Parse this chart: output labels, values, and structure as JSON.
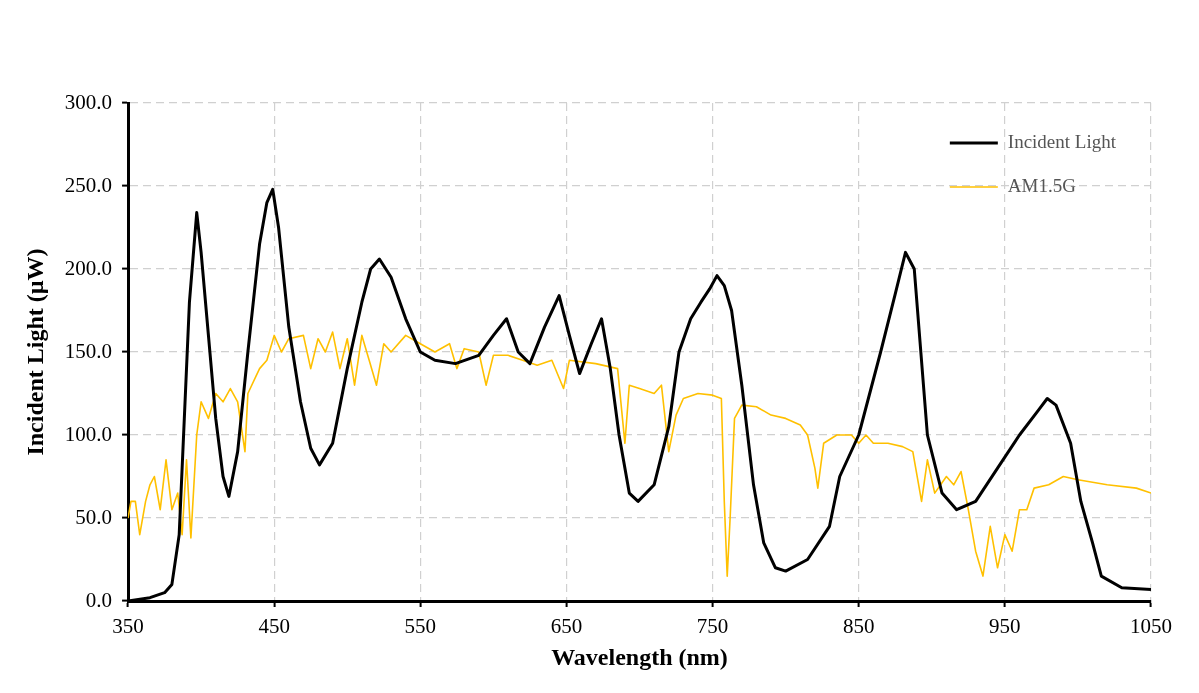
{
  "chart_data": {
    "type": "line",
    "xlabel": "Wavelength (nm)",
    "ylabel": "Incident Light (µW)",
    "xlim": [
      350,
      1050
    ],
    "xticks": [
      350,
      450,
      550,
      650,
      750,
      850,
      950,
      1050
    ],
    "ylim": [
      0,
      300
    ],
    "yticks": [
      {
        "value": 0,
        "label": "0.0"
      },
      {
        "value": 50,
        "label": "50.0"
      },
      {
        "value": 100,
        "label": "100.0"
      },
      {
        "value": 150,
        "label": "150.0"
      },
      {
        "value": 200,
        "label": "200.0"
      },
      {
        "value": 250,
        "label": "250.0"
      },
      {
        "value": 300,
        "label": "300.0"
      }
    ],
    "grid": true,
    "legend": "top right",
    "marker": "none",
    "line_style": "solid",
    "series": [
      {
        "name": "Incident Light",
        "color": "#000000",
        "x": [
          350,
          365,
          375,
          380,
          385,
          388,
          392,
          397,
          400,
          405,
          410,
          415,
          419,
          425,
          432,
          440,
          445,
          449,
          453,
          460,
          468,
          475,
          481,
          490,
          500,
          510,
          516,
          522,
          530,
          540,
          550,
          560,
          574,
          590,
          600,
          609,
          617,
          625,
          635,
          645,
          652,
          659,
          667,
          674,
          680,
          686,
          693,
          699,
          710,
          720,
          727,
          735,
          742,
          748,
          753,
          758,
          763,
          770,
          778,
          785,
          793,
          800,
          815,
          830,
          837,
          850,
          865,
          875,
          882,
          888,
          897,
          907,
          917,
          930,
          945,
          960,
          973,
          979,
          985,
          995,
          1002,
          1010,
          1016,
          1030,
          1050
        ],
        "values": [
          0,
          2,
          5,
          10,
          40,
          100,
          180,
          234,
          210,
          160,
          110,
          75,
          63,
          90,
          150,
          215,
          240,
          248,
          225,
          165,
          120,
          92,
          82,
          95,
          140,
          180,
          200,
          206,
          195,
          170,
          150,
          145,
          143,
          148,
          160,
          170,
          150,
          143,
          165,
          184,
          160,
          137,
          155,
          170,
          140,
          100,
          65,
          60,
          70,
          105,
          150,
          170,
          180,
          188,
          196,
          190,
          175,
          130,
          70,
          35,
          20,
          18,
          25,
          45,
          75,
          100,
          150,
          185,
          210,
          200,
          100,
          65,
          55,
          60,
          80,
          100,
          115,
          122,
          118,
          95,
          60,
          35,
          15,
          8,
          7
        ]
      },
      {
        "name": "AM1.5G",
        "color": "#ffc000",
        "x": [
          350,
          352,
          355,
          358,
          362,
          365,
          368,
          372,
          376,
          380,
          384,
          387,
          390,
          393,
          397,
          400,
          405,
          410,
          415,
          420,
          425,
          430,
          432,
          440,
          445,
          450,
          455,
          460,
          470,
          475,
          480,
          485,
          490,
          495,
          500,
          505,
          510,
          515,
          520,
          525,
          530,
          540,
          550,
          560,
          570,
          575,
          580,
          590,
          595,
          600,
          610,
          620,
          630,
          640,
          648,
          652,
          670,
          685,
          690,
          693,
          700,
          710,
          715,
          720,
          725,
          730,
          740,
          750,
          756,
          758,
          760,
          762,
          765,
          770,
          780,
          790,
          800,
          810,
          815,
          820,
          822,
          826,
          835,
          845,
          850,
          855,
          860,
          870,
          880,
          887,
          893,
          897,
          902,
          910,
          915,
          920,
          925,
          930,
          935,
          940,
          945,
          950,
          955,
          960,
          965,
          970,
          980,
          990,
          1000,
          1020,
          1040,
          1050
        ],
        "values": [
          50,
          60,
          60,
          40,
          60,
          70,
          75,
          55,
          85,
          55,
          65,
          40,
          85,
          38,
          100,
          120,
          110,
          125,
          120,
          128,
          120,
          90,
          125,
          140,
          145,
          160,
          150,
          158,
          160,
          140,
          158,
          150,
          162,
          140,
          158,
          130,
          160,
          145,
          130,
          155,
          150,
          160,
          155,
          150,
          155,
          140,
          152,
          150,
          130,
          148,
          148,
          145,
          142,
          145,
          128,
          145,
          143,
          140,
          95,
          130,
          128,
          125,
          130,
          90,
          112,
          122,
          125,
          124,
          122,
          60,
          15,
          50,
          110,
          118,
          117,
          112,
          110,
          106,
          100,
          80,
          68,
          95,
          100,
          100,
          95,
          100,
          95,
          95,
          93,
          90,
          60,
          85,
          65,
          75,
          70,
          78,
          55,
          30,
          15,
          45,
          20,
          40,
          30,
          55,
          55,
          68,
          70,
          75,
          73,
          70,
          68,
          65
        ]
      }
    ]
  }
}
